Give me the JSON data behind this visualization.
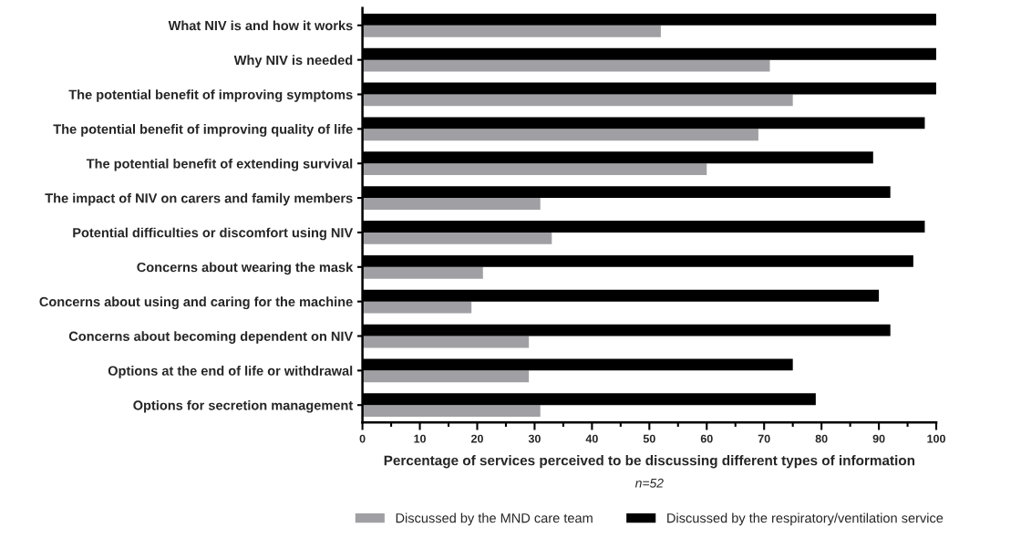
{
  "chart_data": {
    "type": "bar",
    "orientation": "horizontal",
    "categories": [
      "What NIV is and how it works",
      "Why NIV is needed",
      "The potential benefit of improving symptoms",
      "The potential benefit of improving quality of life",
      "The potential benefit of extending survival",
      "The impact of NIV on carers and family members",
      "Potential difficulties or discomfort using NIV",
      "Concerns about wearing the mask",
      "Concerns about using and caring for the machine",
      "Concerns about becoming dependent on NIV",
      "Options at the end of life or withdrawal",
      "Options for secretion management"
    ],
    "series": [
      {
        "name": "Discussed by the MND care team",
        "color": "#a0a0a4",
        "values": [
          52,
          71,
          75,
          69,
          60,
          31,
          33,
          21,
          19,
          29,
          29,
          31
        ]
      },
      {
        "name": "Discussed by the respiratory/ventilation service",
        "color": "#000000",
        "values": [
          100,
          100,
          100,
          98,
          89,
          92,
          98,
          96,
          90,
          92,
          75,
          79
        ]
      }
    ],
    "xlim": [
      0,
      100
    ],
    "xticks": [
      0,
      {
        "value": 5,
        "label": null
      },
      10,
      {
        "value": 15,
        "label": null
      },
      20,
      {
        "value": 25,
        "label": null
      },
      30,
      {
        "value": 35,
        "label": null
      },
      40,
      {
        "value": 45,
        "label": null
      },
      50,
      {
        "value": 55,
        "label": null
      },
      60,
      {
        "value": 65,
        "label": null
      },
      70,
      {
        "value": 75,
        "label": null
      },
      80,
      {
        "value": 85,
        "label": null
      },
      90,
      {
        "value": 95,
        "label": null
      },
      100
    ],
    "xlabel": "Percentage of services perceived to be discussing different types of information",
    "annotations": [
      "n=52"
    ],
    "grid": false,
    "legend": "bottom"
  }
}
